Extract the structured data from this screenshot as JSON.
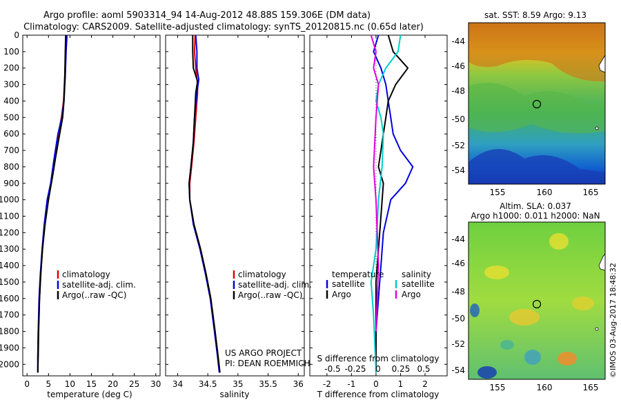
{
  "header": {
    "line1": "Argo profile: aoml 5903314_94 14-Aug-2012 48.88S 159.306E (DM data)",
    "line2": "Climatology: CARS2009. Satellite-adjusted climatology: synTS_20120815.nc (0.65d later)"
  },
  "colors": {
    "climatology": "#e00000",
    "satellite": "#0000dd",
    "argo": "#000000",
    "salinity_satellite": "#00cccc",
    "salinity_argo": "#dd00dd"
  },
  "chart_data": [
    {
      "type": "line",
      "name": "temperature-panel",
      "xlabel": "temperature (deg C)",
      "xlim": [
        -1,
        31
      ],
      "xticks": [
        0,
        5,
        10,
        15,
        20,
        25,
        30
      ],
      "ylim": [
        2070,
        0
      ],
      "yticks": [
        0,
        100,
        200,
        300,
        400,
        500,
        600,
        700,
        800,
        900,
        1000,
        1100,
        1200,
        1300,
        1400,
        1500,
        1600,
        1700,
        1800,
        1900,
        2000
      ],
      "legend": [
        "climatology",
        "satellite-adj. clim.",
        "Argo(..raw -QC)"
      ],
      "legend_position": "lower-right",
      "series": [
        {
          "name": "climatology",
          "color": "#e00000",
          "x": [
            9.2,
            9.0,
            8.8,
            8.5,
            8.0,
            7.3,
            6.5,
            5.6,
            4.8,
            4.1,
            3.6,
            3.2,
            2.9,
            2.6,
            2.5,
            2.5
          ],
          "y": [
            0,
            100,
            250,
            400,
            500,
            600,
            750,
            900,
            1000,
            1150,
            1300,
            1450,
            1600,
            1800,
            1950,
            2050
          ]
        },
        {
          "name": "satellite-adj. clim.",
          "color": "#0000dd",
          "x": [
            9.3,
            9.1,
            8.9,
            8.6,
            8.1,
            7.2,
            6.3,
            5.5,
            4.7,
            4.0,
            3.5,
            3.1,
            2.8,
            2.6,
            2.5,
            2.5
          ],
          "y": [
            0,
            100,
            250,
            400,
            500,
            600,
            750,
            900,
            1000,
            1150,
            1300,
            1450,
            1600,
            1800,
            1950,
            2050
          ]
        },
        {
          "name": "Argo(..raw -QC)",
          "color": "#000000",
          "x": [
            9.0,
            8.9,
            8.8,
            8.6,
            8.3,
            7.6,
            6.6,
            6.0,
            5.0,
            4.2,
            3.6,
            3.2,
            2.9,
            2.7,
            2.6,
            2.5
          ],
          "y": [
            0,
            100,
            250,
            400,
            500,
            600,
            750,
            850,
            1000,
            1150,
            1300,
            1450,
            1600,
            1800,
            1950,
            2050
          ]
        }
      ]
    },
    {
      "type": "line",
      "name": "salinity-panel",
      "xlabel": "salinity",
      "xlim": [
        33.8,
        36.1
      ],
      "xticks": [
        34,
        34.5,
        35,
        35.5,
        36
      ],
      "ylim": [
        2070,
        0
      ],
      "legend": [
        "climatology",
        "satellite-adj. clim.",
        "Argo(..raw -QC)"
      ],
      "legend_position": "lower-right",
      "annotation": [
        "US ARGO PROJECT",
        "PI: DEAN ROEMMICH"
      ],
      "series": [
        {
          "name": "climatology",
          "color": "#e00000",
          "x": [
            34.29,
            34.28,
            34.3,
            34.33,
            34.33,
            34.3,
            34.27,
            34.23,
            34.2,
            34.2,
            34.27,
            34.38,
            34.47,
            34.55,
            34.62,
            34.67,
            34.7
          ],
          "y": [
            0,
            100,
            200,
            300,
            350,
            500,
            650,
            800,
            900,
            1000,
            1150,
            1300,
            1450,
            1600,
            1800,
            1950,
            2050
          ]
        },
        {
          "name": "satellite-adj. clim.",
          "color": "#0000dd",
          "x": [
            34.3,
            34.32,
            34.32,
            34.35,
            34.32,
            34.28,
            34.26,
            34.22,
            34.19,
            34.2,
            34.26,
            34.37,
            34.46,
            34.54,
            34.61,
            34.66,
            34.69
          ],
          "y": [
            0,
            100,
            200,
            270,
            350,
            500,
            650,
            800,
            900,
            1000,
            1150,
            1300,
            1450,
            1600,
            1800,
            1950,
            2050
          ]
        },
        {
          "name": "Argo(..raw -QC)",
          "color": "#000000",
          "x": [
            34.25,
            34.25,
            34.26,
            34.33,
            34.3,
            34.28,
            34.26,
            34.22,
            34.19,
            34.2,
            34.27,
            34.38,
            34.47,
            34.55,
            34.62,
            34.67,
            34.7
          ],
          "y": [
            0,
            100,
            200,
            280,
            350,
            500,
            650,
            800,
            900,
            1000,
            1150,
            1300,
            1450,
            1600,
            1800,
            1950,
            2050
          ]
        }
      ]
    },
    {
      "type": "line",
      "name": "difference-panel",
      "xlabel": "T difference from climatology",
      "xlim": [
        -2.7,
        2.9
      ],
      "xticks": [
        -2,
        -1,
        0,
        1,
        2
      ],
      "top_label": "S difference from climatology",
      "top_ticks": [
        "-0.5",
        "-0.25",
        "0",
        "0.25",
        "0.5"
      ],
      "ylim": [
        2070,
        0
      ],
      "legend_temperature_title": "temperature",
      "legend_salinity_title": "salinity",
      "legend_temperature": [
        "satellite",
        "Argo"
      ],
      "legend_salinity": [
        "satellite",
        "Argo"
      ],
      "series": [
        {
          "name": "temperature satellite",
          "color": "#0000dd",
          "x": [
            0.1,
            -0.1,
            0.2,
            0.4,
            0.5,
            0.6,
            0.7,
            1.0,
            1.5,
            1.2,
            0.6,
            0.3,
            0.2,
            0.1,
            0.0,
            0.0
          ],
          "y": [
            0,
            100,
            200,
            300,
            400,
            500,
            600,
            700,
            800,
            900,
            1000,
            1200,
            1400,
            1600,
            1800,
            2050
          ]
        },
        {
          "name": "temperature Argo",
          "color": "#000000",
          "x": [
            0.5,
            0.7,
            1.3,
            0.8,
            0.5,
            0.4,
            0.3,
            0.2,
            0.1,
            0.3,
            0.2,
            0.1,
            0.0,
            0.0,
            0.0
          ],
          "y": [
            0,
            100,
            200,
            300,
            400,
            500,
            600,
            700,
            800,
            900,
            1100,
            1300,
            1500,
            1800,
            2050
          ]
        },
        {
          "name": "salinity satellite",
          "color": "#00cccc",
          "x": [
            1.0,
            0.9,
            0.4,
            0.1,
            0.0,
            0.2,
            0.3,
            0.25,
            0.1,
            0.0,
            -0.2,
            -0.1,
            0.0
          ],
          "y": [
            0,
            100,
            200,
            300,
            400,
            500,
            600,
            800,
            1000,
            1300,
            1500,
            1700,
            2050
          ]
        },
        {
          "name": "salinity Argo",
          "color": "#dd00dd",
          "x": [
            -0.2,
            0.0,
            -0.1,
            0.1,
            0.0,
            -0.1,
            0.0,
            0.1,
            0.0
          ],
          "y": [
            0,
            100,
            200,
            300,
            500,
            800,
            1000,
            1400,
            1800
          ]
        }
      ]
    }
  ],
  "maps": [
    {
      "name": "sst-map",
      "title": "sat. SST: 8.59 Argo: 9.13",
      "yticks": [
        "-44",
        "-46",
        "-48",
        "-50",
        "-52",
        "-54"
      ],
      "xticks": [
        "155",
        "160",
        "165"
      ]
    },
    {
      "name": "sla-map",
      "title_line1": "Altim. SLA: 0.037",
      "title_line2": "Argo h1000: 0.011 h2000: NaN",
      "yticks": [
        "-44",
        "-46",
        "-48",
        "-50",
        "-52",
        "-54"
      ],
      "xticks": [
        "155",
        "160",
        "165"
      ]
    }
  ],
  "credit": "©IMOS 03-Aug-2017 18:48:32"
}
